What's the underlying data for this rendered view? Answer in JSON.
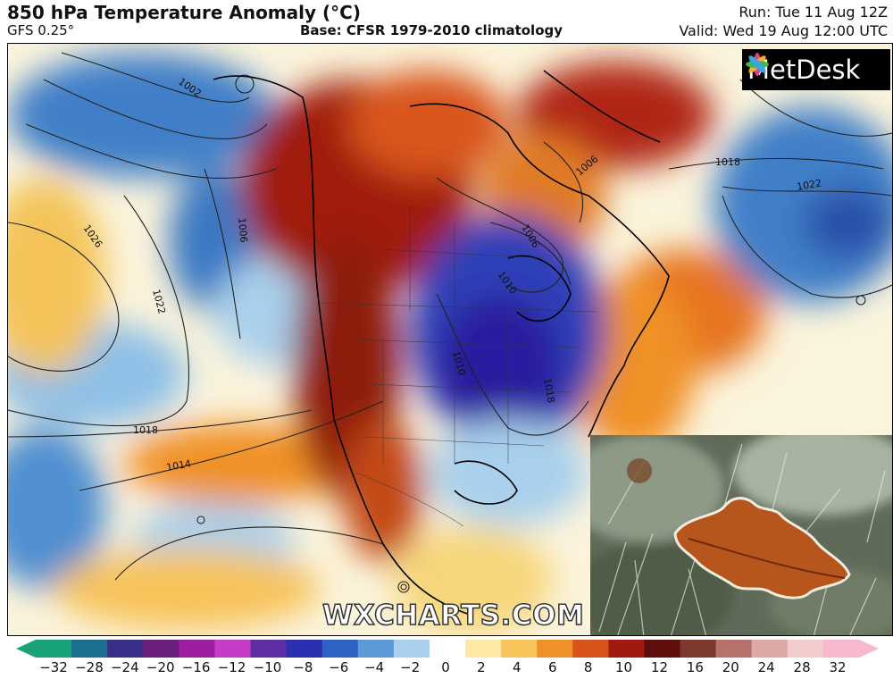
{
  "header": {
    "title": "850 hPa Temperature Anomaly (°C)",
    "model": "GFS 0.25°",
    "base": "Base: CFSR 1979-2010 climatology",
    "run": "Run: Tue 11 Aug 12Z",
    "valid": "Valid: Wed 19 Aug 12:00 UTC"
  },
  "logo": {
    "text": "MetDesk",
    "icon": "metdesk-logo-icon"
  },
  "watermark": "WXCHARTS.COM",
  "isobar_labels": [
    "1002",
    "1006",
    "1006",
    "1006",
    "1010",
    "1010",
    "1014",
    "1018",
    "1018",
    "1022",
    "1022",
    "1026",
    "1018"
  ],
  "inset_photo": {
    "subject": "frost-covered-oak-leaf-on-grass-photo"
  },
  "colorbar": {
    "ticks": [
      "−32",
      "−28",
      "−24",
      "−20",
      "−16",
      "−12",
      "−10",
      "−8",
      "−6",
      "−4",
      "−2",
      "0",
      "2",
      "4",
      "6",
      "8",
      "10",
      "12",
      "16",
      "20",
      "24",
      "28",
      "32"
    ],
    "colors": [
      "#1aa37a",
      "#1d6f8f",
      "#3a2f86",
      "#6a1f7a",
      "#9d1fa0",
      "#c63cc7",
      "#5d2fa3",
      "#2b2fb0",
      "#2f62c4",
      "#5b9ad6",
      "#a9d0ec",
      "#ffffff",
      "#fde9a3",
      "#f7c35a",
      "#f09127",
      "#d9541a",
      "#a01a10",
      "#5e0e0c",
      "#7a3a30",
      "#b7736b",
      "#dca9a6",
      "#f2cccd",
      "#f7b8cf"
    ]
  },
  "colors": {
    "cold": "#2f2fb8",
    "warm": "#8e1a0e",
    "neutral": "#f7f2dd"
  }
}
